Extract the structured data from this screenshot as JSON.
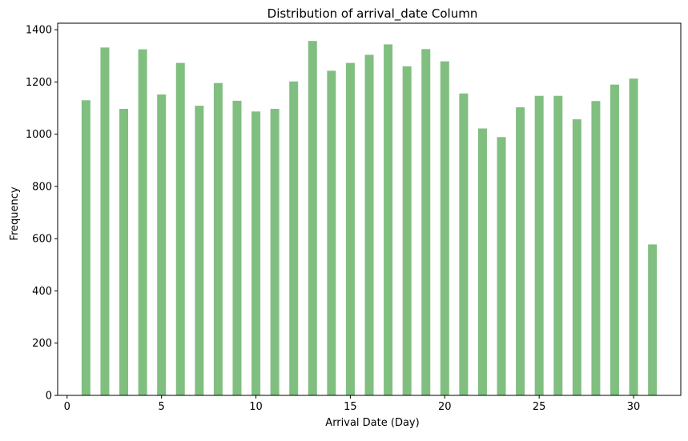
{
  "chart_data": {
    "type": "bar",
    "title": "Distribution of arrival_date Column",
    "xlabel": "Arrival Date (Day)",
    "ylabel": "Frequency",
    "x": [
      1,
      2,
      3,
      4,
      5,
      6,
      7,
      8,
      9,
      10,
      11,
      12,
      13,
      14,
      15,
      16,
      17,
      18,
      19,
      20,
      21,
      22,
      23,
      24,
      25,
      26,
      27,
      28,
      29,
      30,
      31
    ],
    "values": [
      1130,
      1332,
      1097,
      1325,
      1152,
      1273,
      1109,
      1196,
      1128,
      1087,
      1097,
      1202,
      1357,
      1243,
      1273,
      1304,
      1344,
      1260,
      1326,
      1279,
      1156,
      1022,
      989,
      1103,
      1147,
      1147,
      1057,
      1127,
      1190,
      1213,
      578
    ],
    "xlim": [
      -0.5,
      32.5
    ],
    "ylim": [
      0,
      1425
    ],
    "xticks": [
      0,
      5,
      10,
      15,
      20,
      25,
      30
    ],
    "yticks": [
      0,
      200,
      400,
      600,
      800,
      1000,
      1200,
      1400
    ],
    "bar_color": "#80bf80",
    "grid": false,
    "legend": "none"
  }
}
